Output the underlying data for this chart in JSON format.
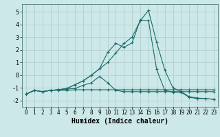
{
  "xlabel": "Humidex (Indice chaleur)",
  "background_color": "#cce8e8",
  "grid_color": "#b0c8c8",
  "line_color": "#1a6b6b",
  "x": [
    0,
    1,
    2,
    3,
    4,
    5,
    6,
    7,
    8,
    9,
    10,
    11,
    12,
    13,
    14,
    15,
    16,
    17,
    18,
    19,
    20,
    21,
    22,
    23
  ],
  "series1": [
    -1.5,
    -1.2,
    -1.3,
    -1.2,
    -1.2,
    -1.2,
    -1.15,
    -1.15,
    -1.15,
    -1.15,
    -1.15,
    -1.15,
    -1.15,
    -1.15,
    -1.15,
    -1.15,
    -1.15,
    -1.15,
    -1.15,
    -1.15,
    -1.15,
    -1.15,
    -1.15,
    -1.15
  ],
  "series2": [
    -1.5,
    -1.2,
    -1.3,
    -1.2,
    -1.15,
    -1.1,
    -1.05,
    -0.8,
    -0.6,
    -0.1,
    -0.6,
    -1.2,
    -1.3,
    -1.3,
    -1.3,
    -1.3,
    -1.3,
    -1.3,
    -1.3,
    -1.3,
    -1.3,
    -1.3,
    -1.3,
    -1.3
  ],
  "series3": [
    -1.5,
    -1.2,
    -1.3,
    -1.2,
    -1.15,
    -1.05,
    -0.75,
    -0.45,
    0.0,
    0.5,
    1.0,
    1.75,
    2.5,
    3.0,
    4.3,
    5.1,
    2.6,
    0.4,
    -1.0,
    -1.3,
    -1.7,
    -1.8,
    -1.85,
    -1.9
  ],
  "series4": [
    -1.5,
    -1.2,
    -1.3,
    -1.2,
    -1.15,
    -1.05,
    -0.75,
    -0.45,
    0.0,
    0.5,
    1.8,
    2.5,
    2.2,
    2.55,
    4.35,
    4.3,
    0.45,
    -1.2,
    -1.35,
    -1.35,
    -1.75,
    -1.85,
    -1.85,
    -1.9
  ],
  "ylim": [
    -2.5,
    5.6
  ],
  "xlim": [
    -0.5,
    23.5
  ],
  "yticks": [
    -2,
    -1,
    0,
    1,
    2,
    3,
    4,
    5
  ],
  "xticks": [
    0,
    1,
    2,
    3,
    4,
    5,
    6,
    7,
    8,
    9,
    10,
    11,
    12,
    13,
    14,
    15,
    16,
    17,
    18,
    19,
    20,
    21,
    22,
    23
  ]
}
